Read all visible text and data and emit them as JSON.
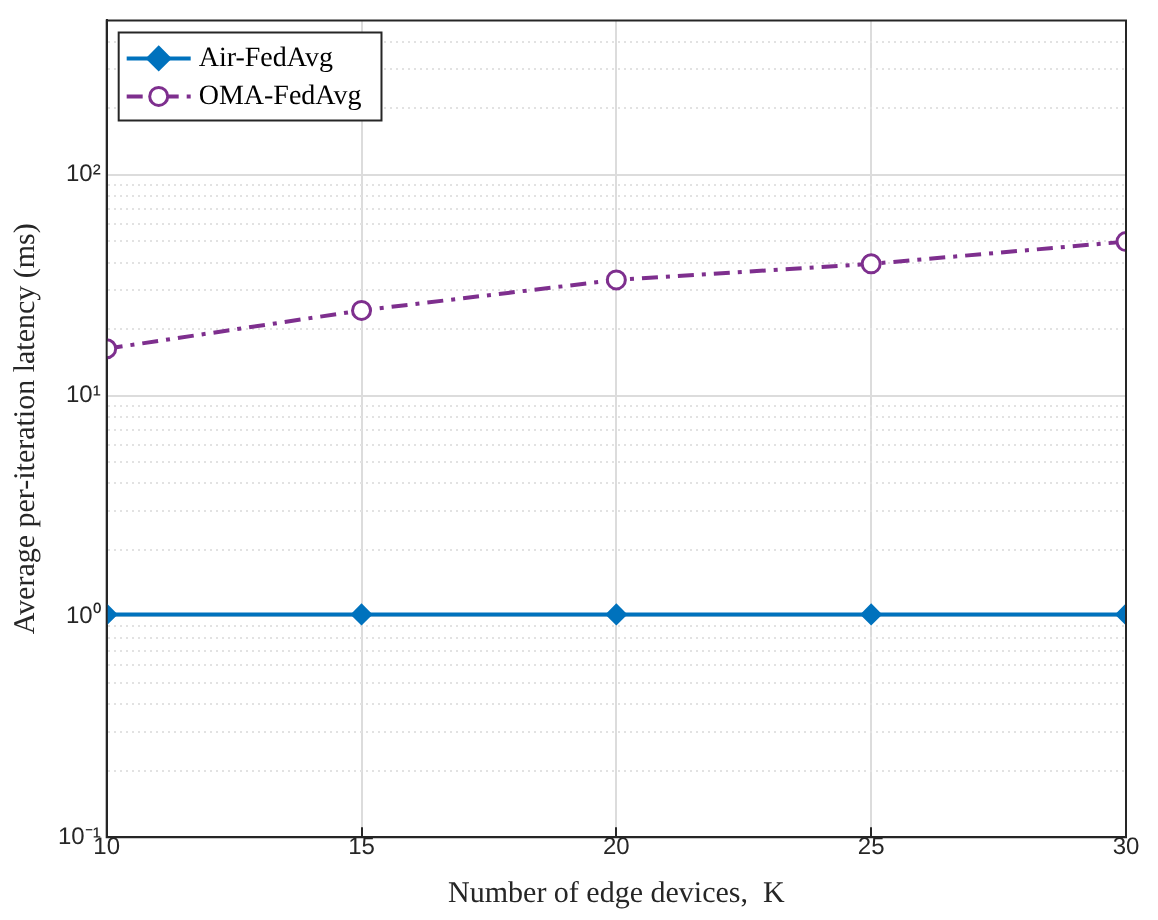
{
  "chart_data": {
    "type": "line",
    "xlabel": "Number of edge devices,  K",
    "ylabel": "Average per-iteration latency (ms)",
    "x": [
      10,
      15,
      20,
      25,
      30
    ],
    "series": [
      {
        "name": "Air-FedAvg",
        "color": "#0072bd",
        "values": [
          1.02,
          1.02,
          1.02,
          1.02,
          1.02
        ],
        "marker": "diamond",
        "line_style": "solid"
      },
      {
        "name": "OMA-FedAvg",
        "color": "#7e2f8e",
        "values": [
          16.3,
          24.3,
          33.4,
          39.5,
          49.8
        ],
        "marker": "circle",
        "line_style": "dashed"
      }
    ],
    "xlim": [
      10,
      30
    ],
    "xticks": [
      10,
      15,
      20,
      25,
      30
    ],
    "ylim": [
      0.1,
      500
    ],
    "yticks": [
      {
        "value": 0.1,
        "label": "10⁻¹"
      },
      {
        "value": 0.2,
        "label": null
      },
      {
        "value": 0.3,
        "label": null
      },
      {
        "value": 0.4,
        "label": null
      },
      {
        "value": 0.5,
        "label": null
      },
      {
        "value": 0.6,
        "label": null
      },
      {
        "value": 0.7,
        "label": null
      },
      {
        "value": 0.8,
        "label": null
      },
      {
        "value": 0.9,
        "label": null
      },
      {
        "value": 1,
        "label": "10⁰"
      },
      {
        "value": 2,
        "label": null
      },
      {
        "value": 3,
        "label": null
      },
      {
        "value": 4,
        "label": null
      },
      {
        "value": 5,
        "label": null
      },
      {
        "value": 6,
        "label": null
      },
      {
        "value": 7,
        "label": null
      },
      {
        "value": 8,
        "label": null
      },
      {
        "value": 9,
        "label": null
      },
      {
        "value": 10,
        "label": "10¹"
      },
      {
        "value": 20,
        "label": null
      },
      {
        "value": 30,
        "label": null
      },
      {
        "value": 40,
        "label": null
      },
      {
        "value": 50,
        "label": null
      },
      {
        "value": 60,
        "label": null
      },
      {
        "value": 70,
        "label": null
      },
      {
        "value": 80,
        "label": null
      },
      {
        "value": 90,
        "label": null
      },
      {
        "value": 100,
        "label": "10²"
      },
      {
        "value": 200,
        "label": null
      },
      {
        "value": 300,
        "label": null
      },
      {
        "value": 400,
        "label": null
      }
    ],
    "log": "y",
    "grid": true,
    "legend": "top left"
  }
}
